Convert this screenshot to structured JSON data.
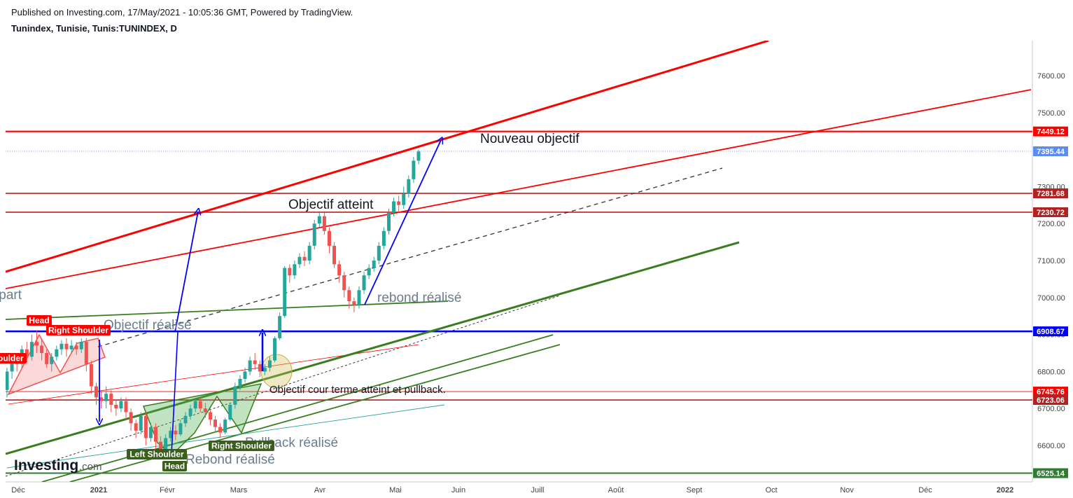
{
  "published": "Published on Investing.com, 17/May/2021 - 10:05:36 GMT, Powered by TradingView.",
  "symbol": "Tunindex, Tunisie, Tunis:TUNINDEX, D",
  "colors": {
    "up": "#26a69a",
    "down": "#ef5350",
    "red": "#ff0000",
    "darkred": "#b22222",
    "blue": "#0000ff",
    "green": "#2e7d32",
    "price": "#5b8def"
  },
  "chart_data": {
    "type": "candlestick",
    "ylim": [
      6515,
      7700
    ],
    "y_ticks": [
      6600,
      6700,
      6800,
      6900,
      7000,
      7100,
      7200,
      7300,
      7400,
      7500,
      7600
    ],
    "y_tick_labels": [
      "6600.00",
      "6700.00",
      "6800.00",
      "6900.00",
      "7000.00",
      "7100.00",
      "7200.00",
      "7300.00",
      "7400.00",
      "7500.00",
      "7600.00"
    ],
    "x_ticks": [
      "Déc",
      "2021",
      "Févr",
      "Mars",
      "Avr",
      "Mai",
      "Juin",
      "Juill",
      "Août",
      "Sept",
      "Oct",
      "Nov",
      "Déc",
      "2022"
    ],
    "price_levels": [
      {
        "label": "7449.12",
        "value": 7449.12,
        "color": "#ff0000"
      },
      {
        "label": "7395.44",
        "value": 7395.44,
        "color": "#5b8def"
      },
      {
        "label": "7281.68",
        "value": 7281.68,
        "color": "#b22222"
      },
      {
        "label": "7230.72",
        "value": 7230.72,
        "color": "#b22222"
      },
      {
        "label": "6908.67",
        "value": 6908.67,
        "color": "#0000ff"
      },
      {
        "label": "6745.76",
        "value": 6745.76,
        "color": "#ff0000"
      },
      {
        "label": "6723.06",
        "value": 6723.06,
        "color": "#b22222"
      },
      {
        "label": "6525.14",
        "value": 6525.14,
        "color": "#2e7d32"
      }
    ],
    "candles": [
      [
        6750,
        6800,
        6730,
        6810
      ],
      [
        6800,
        6830,
        6780,
        6840
      ],
      [
        6830,
        6820,
        6800,
        6850
      ],
      [
        6820,
        6860,
        6810,
        6870
      ],
      [
        6860,
        6840,
        6825,
        6880
      ],
      [
        6840,
        6880,
        6830,
        6900
      ],
      [
        6880,
        6870,
        6850,
        6910
      ],
      [
        6870,
        6850,
        6830,
        6885
      ],
      [
        6850,
        6820,
        6810,
        6860
      ],
      [
        6820,
        6840,
        6800,
        6850
      ],
      [
        6840,
        6860,
        6830,
        6870
      ],
      [
        6860,
        6875,
        6845,
        6885
      ],
      [
        6875,
        6860,
        6840,
        6890
      ],
      [
        6860,
        6870,
        6850,
        6885
      ],
      [
        6870,
        6860,
        6845,
        6880
      ],
      [
        6860,
        6880,
        6850,
        6890
      ],
      [
        6880,
        6820,
        6800,
        6890
      ],
      [
        6820,
        6760,
        6740,
        6830
      ],
      [
        6760,
        6730,
        6710,
        6770
      ],
      [
        6730,
        6720,
        6700,
        6745
      ],
      [
        6720,
        6740,
        6700,
        6760
      ],
      [
        6740,
        6710,
        6690,
        6750
      ],
      [
        6710,
        6700,
        6680,
        6725
      ],
      [
        6700,
        6720,
        6690,
        6730
      ],
      [
        6720,
        6690,
        6670,
        6730
      ],
      [
        6690,
        6660,
        6640,
        6700
      ],
      [
        6660,
        6640,
        6620,
        6670
      ],
      [
        6640,
        6680,
        6630,
        6690
      ],
      [
        6680,
        6620,
        6600,
        6690
      ],
      [
        6620,
        6650,
        6610,
        6660
      ],
      [
        6650,
        6610,
        6590,
        6660
      ],
      [
        6610,
        6580,
        6570,
        6625
      ],
      [
        6580,
        6620,
        6570,
        6630
      ],
      [
        6620,
        6640,
        6610,
        6650
      ],
      [
        6640,
        6630,
        6615,
        6655
      ],
      [
        6630,
        6660,
        6625,
        6670
      ],
      [
        6660,
        6680,
        6650,
        6690
      ],
      [
        6680,
        6700,
        6670,
        6710
      ],
      [
        6700,
        6720,
        6690,
        6725
      ],
      [
        6720,
        6700,
        6690,
        6730
      ],
      [
        6700,
        6690,
        6675,
        6715
      ],
      [
        6690,
        6670,
        6655,
        6700
      ],
      [
        6670,
        6650,
        6635,
        6680
      ],
      [
        6650,
        6635,
        6620,
        6660
      ],
      [
        6635,
        6670,
        6630,
        6675
      ],
      [
        6670,
        6710,
        6665,
        6715
      ],
      [
        6710,
        6760,
        6700,
        6770
      ],
      [
        6760,
        6780,
        6750,
        6790
      ],
      [
        6780,
        6800,
        6770,
        6810
      ],
      [
        6800,
        6830,
        6790,
        6840
      ],
      [
        6830,
        6820,
        6805,
        6850
      ],
      [
        6820,
        6800,
        6785,
        6830
      ],
      [
        6800,
        6810,
        6790,
        6820
      ],
      [
        6810,
        6830,
        6800,
        6840
      ],
      [
        6830,
        6890,
        6825,
        6895
      ],
      [
        6890,
        6950,
        6885,
        6960
      ],
      [
        6950,
        7080,
        6945,
        7085
      ],
      [
        7080,
        7060,
        7040,
        7090
      ],
      [
        7060,
        7090,
        7050,
        7100
      ],
      [
        7090,
        7110,
        7080,
        7120
      ],
      [
        7110,
        7100,
        7085,
        7125
      ],
      [
        7100,
        7140,
        7090,
        7150
      ],
      [
        7140,
        7200,
        7130,
        7210
      ],
      [
        7200,
        7220,
        7190,
        7230
      ],
      [
        7220,
        7180,
        7170,
        7230
      ],
      [
        7180,
        7140,
        7120,
        7190
      ],
      [
        7140,
        7090,
        7080,
        7150
      ],
      [
        7090,
        7060,
        7040,
        7100
      ],
      [
        7060,
        7020,
        7000,
        7070
      ],
      [
        7020,
        6990,
        6970,
        7030
      ],
      [
        6990,
        6980,
        6960,
        7000
      ],
      [
        6980,
        7020,
        6970,
        7030
      ],
      [
        7020,
        7060,
        7010,
        7070
      ],
      [
        7060,
        7080,
        7050,
        7090
      ],
      [
        7080,
        7100,
        7070,
        7110
      ],
      [
        7100,
        7140,
        7090,
        7150
      ],
      [
        7140,
        7180,
        7130,
        7190
      ],
      [
        7180,
        7230,
        7170,
        7240
      ],
      [
        7230,
        7260,
        7220,
        7270
      ],
      [
        7260,
        7250,
        7230,
        7275
      ],
      [
        7250,
        7280,
        7240,
        7300
      ],
      [
        7280,
        7320,
        7270,
        7330
      ],
      [
        7320,
        7370,
        7310,
        7380
      ],
      [
        7370,
        7395,
        7360,
        7400
      ]
    ]
  },
  "labels": {
    "nouveau": "Nouveau objectif",
    "atteint": "Objectif atteint",
    "rebond_realise1": "rebond réalisé",
    "obj_realise": "Objectif réalisé",
    "depart": "Départ",
    "court_terme": "Objectif cour terme atteint et pullback.",
    "pullback": "Pullback réalisé",
    "rebond_realise2": "Rebond réalisé",
    "head_left": "Head",
    "right_shoulder_left": "Right Shoulder",
    "left_shoulder_red": "Left Shoulder",
    "left_shoulder": "Left Shoulder",
    "head": "Head",
    "right_shoulder": "Right Shoulder"
  },
  "watermark": {
    "part1": "Investing",
    "part2": ".com"
  }
}
